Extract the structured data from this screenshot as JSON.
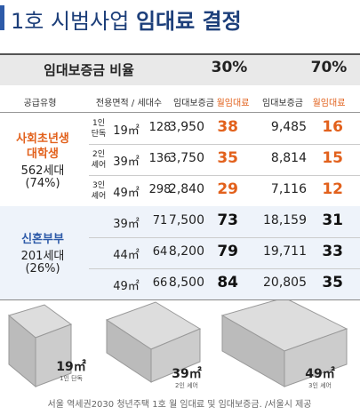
{
  "title": {
    "prefix": "1호 시범사업",
    "bold": "임대료 결정"
  },
  "table": {
    "ratio_label": "임대보증금 비율",
    "ratio_30": "30%",
    "ratio_70": "70%",
    "columns": [
      "공급유형",
      "전용면적 / 세대수",
      "임대보증금",
      "월임대료",
      "임대보증금",
      "월임대료"
    ],
    "groups": [
      {
        "name_lines": [
          "사회초년생",
          "대학생"
        ],
        "households": "562세대",
        "share": "(74%)",
        "rows": [
          {
            "type": [
              "1인",
              "단독"
            ],
            "area": "19㎡",
            "units": "128",
            "deposit_30": "3,950",
            "rent_30": "38",
            "deposit_70": "9,485",
            "rent_70": "16"
          },
          {
            "type": [
              "2인",
              "셰어"
            ],
            "area": "39㎡",
            "units": "136",
            "deposit_30": "3,750",
            "rent_30": "35",
            "deposit_70": "8,814",
            "rent_70": "15"
          },
          {
            "type": [
              "3인",
              "셰어"
            ],
            "area": "49㎡",
            "units": "298",
            "deposit_30": "2,840",
            "rent_30": "29",
            "deposit_70": "7,116",
            "rent_70": "12"
          }
        ]
      },
      {
        "name_lines": [
          "신혼부부"
        ],
        "households": "201세대",
        "share": "(26%)",
        "rows": [
          {
            "area": "39㎡",
            "units": "71",
            "deposit_30": "7,500",
            "rent_30": "73",
            "deposit_70": "18,159",
            "rent_70": "31"
          },
          {
            "area": "44㎡",
            "units": "64",
            "deposit_30": "8,200",
            "rent_30": "79",
            "deposit_70": "19,711",
            "rent_70": "33"
          },
          {
            "area": "49㎡",
            "units": "66",
            "deposit_30": "8,500",
            "rent_30": "84",
            "deposit_70": "20,805",
            "rent_70": "35"
          }
        ]
      }
    ]
  },
  "plans": [
    {
      "area": "19㎡",
      "label": "1인 단독"
    },
    {
      "area": "39㎡",
      "label": "2인 셰어"
    },
    {
      "area": "49㎡",
      "label": "3인 셰어"
    }
  ],
  "caption": "서울 역세권2030 청년주택 1호 월 임대료 및 임대보증금. /서울시 제공"
}
